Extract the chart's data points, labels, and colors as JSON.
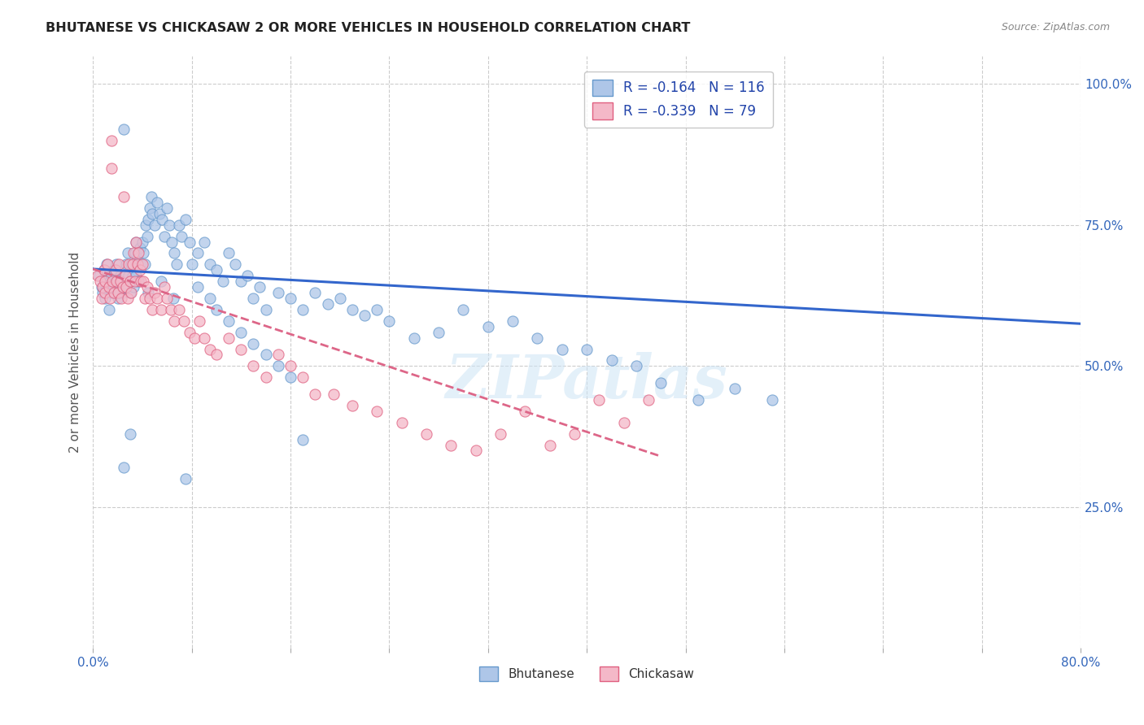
{
  "title": "BHUTANESE VS CHICKASAW 2 OR MORE VEHICLES IN HOUSEHOLD CORRELATION CHART",
  "source": "Source: ZipAtlas.com",
  "ylabel": "2 or more Vehicles in Household",
  "xlim": [
    0.0,
    0.8
  ],
  "ylim": [
    0.0,
    1.05
  ],
  "xticks": [
    0.0,
    0.08,
    0.16,
    0.24,
    0.32,
    0.4,
    0.48,
    0.56,
    0.64,
    0.72,
    0.8
  ],
  "xticklabels": [
    "0.0%",
    "",
    "",
    "",
    "",
    "",
    "",
    "",
    "",
    "",
    "80.0%"
  ],
  "yticks": [
    0.0,
    0.25,
    0.5,
    0.75,
    1.0
  ],
  "yticklabels": [
    "",
    "25.0%",
    "50.0%",
    "75.0%",
    "100.0%"
  ],
  "bhutanese_color": "#aec6e8",
  "chickasaw_color": "#f4b8c8",
  "bhutanese_edge": "#6699cc",
  "chickasaw_edge": "#e06080",
  "trendline_blue": "#3366cc",
  "trendline_pink": "#dd6688",
  "legend_R_blue": "-0.164",
  "legend_N_blue": "116",
  "legend_R_pink": "-0.339",
  "legend_N_pink": "79",
  "legend_color": "#2244aa",
  "watermark": "ZIPatlas",
  "background_color": "#ffffff",
  "grid_color": "#cccccc",
  "blue_trend_x": [
    0.0,
    0.8
  ],
  "blue_trend_y": [
    0.672,
    0.575
  ],
  "pink_trend_x": [
    0.0,
    0.46
  ],
  "pink_trend_y": [
    0.672,
    0.34
  ],
  "bhutanese_x": [
    0.005,
    0.007,
    0.008,
    0.009,
    0.01,
    0.01,
    0.011,
    0.012,
    0.013,
    0.014,
    0.015,
    0.015,
    0.016,
    0.017,
    0.018,
    0.019,
    0.02,
    0.02,
    0.021,
    0.022,
    0.023,
    0.024,
    0.025,
    0.025,
    0.026,
    0.027,
    0.028,
    0.029,
    0.03,
    0.03,
    0.031,
    0.032,
    0.033,
    0.034,
    0.035,
    0.035,
    0.036,
    0.037,
    0.038,
    0.039,
    0.04,
    0.041,
    0.042,
    0.043,
    0.044,
    0.045,
    0.046,
    0.047,
    0.048,
    0.05,
    0.052,
    0.054,
    0.056,
    0.058,
    0.06,
    0.062,
    0.064,
    0.066,
    0.068,
    0.07,
    0.072,
    0.075,
    0.078,
    0.08,
    0.085,
    0.09,
    0.095,
    0.1,
    0.105,
    0.11,
    0.115,
    0.12,
    0.125,
    0.13,
    0.135,
    0.14,
    0.15,
    0.16,
    0.17,
    0.18,
    0.19,
    0.2,
    0.21,
    0.22,
    0.23,
    0.24,
    0.26,
    0.28,
    0.3,
    0.32,
    0.34,
    0.36,
    0.38,
    0.4,
    0.42,
    0.44,
    0.46,
    0.49,
    0.52,
    0.55,
    0.17,
    0.03,
    0.025,
    0.075,
    0.085,
    0.095,
    0.1,
    0.11,
    0.12,
    0.13,
    0.14,
    0.15,
    0.16,
    0.045,
    0.055,
    0.065
  ],
  "bhutanese_y": [
    0.66,
    0.64,
    0.63,
    0.67,
    0.65,
    0.62,
    0.68,
    0.64,
    0.6,
    0.65,
    0.66,
    0.63,
    0.64,
    0.67,
    0.65,
    0.68,
    0.62,
    0.64,
    0.63,
    0.66,
    0.65,
    0.63,
    0.92,
    0.66,
    0.64,
    0.68,
    0.7,
    0.66,
    0.63,
    0.65,
    0.68,
    0.66,
    0.64,
    0.7,
    0.72,
    0.66,
    0.69,
    0.65,
    0.71,
    0.68,
    0.72,
    0.7,
    0.68,
    0.75,
    0.73,
    0.76,
    0.78,
    0.8,
    0.77,
    0.75,
    0.79,
    0.77,
    0.76,
    0.73,
    0.78,
    0.75,
    0.72,
    0.7,
    0.68,
    0.75,
    0.73,
    0.76,
    0.72,
    0.68,
    0.7,
    0.72,
    0.68,
    0.67,
    0.65,
    0.7,
    0.68,
    0.65,
    0.66,
    0.62,
    0.64,
    0.6,
    0.63,
    0.62,
    0.6,
    0.63,
    0.61,
    0.62,
    0.6,
    0.59,
    0.6,
    0.58,
    0.55,
    0.56,
    0.6,
    0.57,
    0.58,
    0.55,
    0.53,
    0.53,
    0.51,
    0.5,
    0.47,
    0.44,
    0.46,
    0.44,
    0.37,
    0.38,
    0.32,
    0.3,
    0.64,
    0.62,
    0.6,
    0.58,
    0.56,
    0.54,
    0.52,
    0.5,
    0.48,
    0.63,
    0.65,
    0.62
  ],
  "chickasaw_x": [
    0.004,
    0.006,
    0.007,
    0.008,
    0.009,
    0.01,
    0.01,
    0.012,
    0.013,
    0.014,
    0.015,
    0.016,
    0.017,
    0.018,
    0.019,
    0.02,
    0.021,
    0.022,
    0.023,
    0.024,
    0.025,
    0.026,
    0.027,
    0.028,
    0.029,
    0.03,
    0.031,
    0.032,
    0.033,
    0.034,
    0.035,
    0.036,
    0.037,
    0.038,
    0.039,
    0.04,
    0.041,
    0.042,
    0.044,
    0.046,
    0.048,
    0.05,
    0.052,
    0.055,
    0.058,
    0.06,
    0.063,
    0.066,
    0.07,
    0.074,
    0.078,
    0.082,
    0.086,
    0.09,
    0.095,
    0.1,
    0.11,
    0.12,
    0.13,
    0.14,
    0.15,
    0.16,
    0.17,
    0.18,
    0.195,
    0.21,
    0.23,
    0.25,
    0.27,
    0.29,
    0.31,
    0.33,
    0.35,
    0.37,
    0.39,
    0.41,
    0.43,
    0.45,
    0.015
  ],
  "chickasaw_y": [
    0.66,
    0.65,
    0.62,
    0.64,
    0.67,
    0.65,
    0.63,
    0.68,
    0.64,
    0.62,
    0.85,
    0.65,
    0.63,
    0.67,
    0.65,
    0.63,
    0.68,
    0.65,
    0.62,
    0.64,
    0.8,
    0.66,
    0.64,
    0.62,
    0.68,
    0.65,
    0.63,
    0.68,
    0.7,
    0.65,
    0.72,
    0.68,
    0.7,
    0.67,
    0.65,
    0.68,
    0.65,
    0.62,
    0.64,
    0.62,
    0.6,
    0.63,
    0.62,
    0.6,
    0.64,
    0.62,
    0.6,
    0.58,
    0.6,
    0.58,
    0.56,
    0.55,
    0.58,
    0.55,
    0.53,
    0.52,
    0.55,
    0.53,
    0.5,
    0.48,
    0.52,
    0.5,
    0.48,
    0.45,
    0.45,
    0.43,
    0.42,
    0.4,
    0.38,
    0.36,
    0.35,
    0.38,
    0.42,
    0.36,
    0.38,
    0.44,
    0.4,
    0.44,
    0.9
  ]
}
